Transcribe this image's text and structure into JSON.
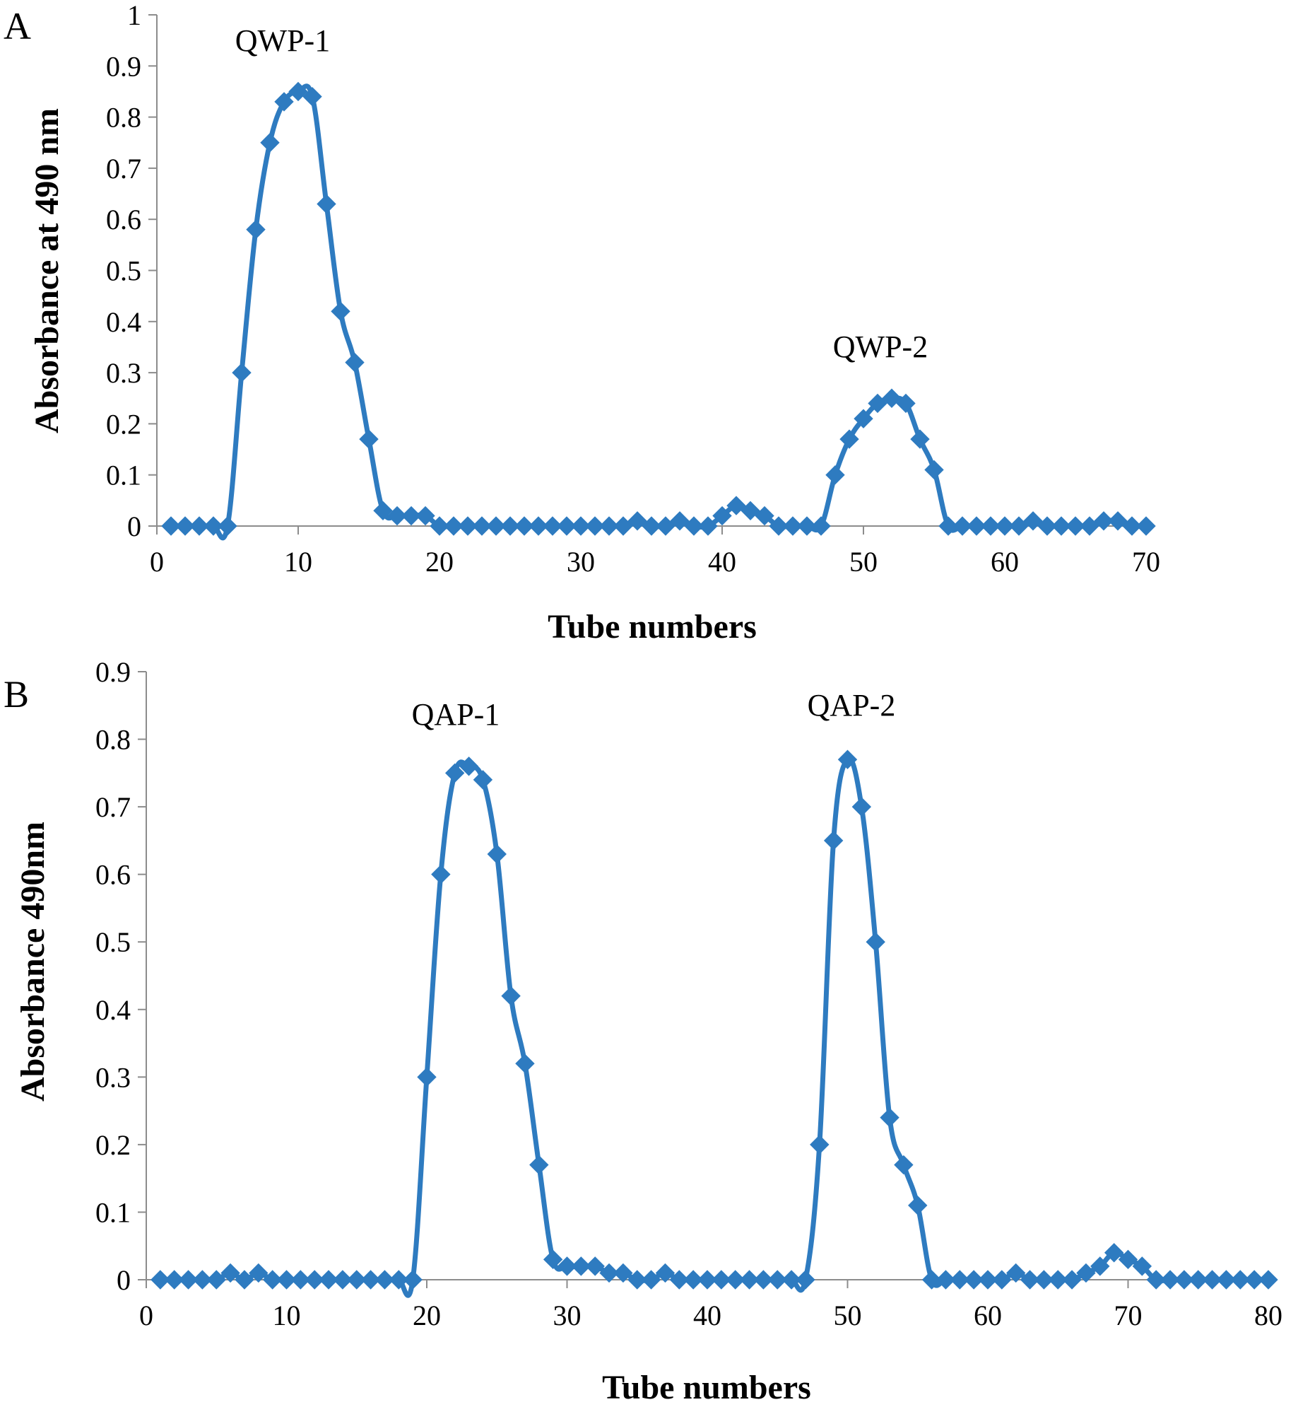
{
  "chart_data": [
    {
      "type": "line",
      "panel_label": "A",
      "xlabel": "Tube numbers",
      "ylabel": "Absorbance at 490 nm",
      "xlim": [
        0,
        70
      ],
      "ylim": [
        0,
        1
      ],
      "xticks": [
        0,
        10,
        20,
        30,
        40,
        50,
        60,
        70
      ],
      "xtick_labels": [
        "0",
        "10",
        "20",
        "30",
        "40",
        "50",
        "60",
        "70"
      ],
      "yticks": [
        0,
        0.1,
        0.2,
        0.3,
        0.4,
        0.5,
        0.6,
        0.7,
        0.8,
        0.9,
        1
      ],
      "ytick_labels": [
        "0",
        "0.1",
        "0.2",
        "0.3",
        "0.4",
        "0.5",
        "0.6",
        "0.7",
        "0.8",
        "0.9",
        "1"
      ],
      "grid": false,
      "annotations": [
        {
          "text": "QWP-1",
          "x": 9.5,
          "y": 0.96
        },
        {
          "text": "QWP-2",
          "x": 52,
          "y": 0.34
        }
      ],
      "series": [
        {
          "name": "Absorbance",
          "color": "#2E7BC0",
          "marker": "diamond",
          "x": [
            1,
            2,
            3,
            4,
            5,
            6,
            7,
            8,
            9,
            10,
            11,
            12,
            13,
            14,
            15,
            16,
            17,
            18,
            19,
            20,
            21,
            22,
            23,
            24,
            25,
            26,
            27,
            28,
            29,
            30,
            31,
            32,
            33,
            34,
            35,
            36,
            37,
            38,
            39,
            40,
            41,
            42,
            43,
            44,
            45,
            46,
            47,
            48,
            49,
            50,
            51,
            52,
            53,
            54,
            55,
            56,
            57,
            58,
            59,
            60,
            61,
            62,
            63,
            64,
            65,
            66,
            67,
            68,
            69,
            70
          ],
          "y": [
            0,
            0,
            0,
            0,
            0,
            0.3,
            0.58,
            0.75,
            0.83,
            0.85,
            0.84,
            0.63,
            0.42,
            0.32,
            0.17,
            0.03,
            0.02,
            0.02,
            0.02,
            0,
            0,
            0,
            0,
            0,
            0,
            0,
            0,
            0,
            0,
            0,
            0,
            0,
            0,
            0.01,
            0,
            0,
            0.01,
            0,
            0,
            0.02,
            0.04,
            0.03,
            0.02,
            0,
            0,
            0,
            0,
            0.1,
            0.17,
            0.21,
            0.24,
            0.25,
            0.24,
            0.17,
            0.11,
            0,
            0,
            0,
            0,
            0,
            0,
            0.01,
            0,
            0,
            0,
            0,
            0.01,
            0.01,
            0,
            0
          ]
        }
      ]
    },
    {
      "type": "line",
      "panel_label": "B",
      "xlabel": "Tube numbers",
      "ylabel": "Absorbance 490nm",
      "xlim": [
        0,
        80
      ],
      "ylim": [
        0,
        0.9
      ],
      "xticks": [
        0,
        10,
        20,
        30,
        40,
        50,
        60,
        70,
        80
      ],
      "xtick_labels": [
        "0",
        "10",
        "20",
        "30",
        "40",
        "50",
        "60",
        "70",
        "80"
      ],
      "yticks": [
        0,
        0.1,
        0.2,
        0.3,
        0.4,
        0.5,
        0.6,
        0.7,
        0.8,
        0.9
      ],
      "ytick_labels": [
        "0",
        "0.1",
        "0.2",
        "0.3",
        "0.4",
        "0.5",
        "0.6",
        "0.7",
        "0.8",
        "0.9"
      ],
      "grid": false,
      "annotations": [
        {
          "text": "QAP-1",
          "x": 22.5,
          "y": 0.835
        },
        {
          "text": "QAP-2",
          "x": 50,
          "y": 0.84
        }
      ],
      "series": [
        {
          "name": "Absorbance",
          "color": "#2E7BC0",
          "marker": "diamond",
          "x": [
            1,
            2,
            3,
            4,
            5,
            6,
            7,
            8,
            9,
            10,
            11,
            12,
            13,
            14,
            15,
            16,
            17,
            18,
            19,
            20,
            21,
            22,
            23,
            24,
            25,
            26,
            27,
            28,
            29,
            30,
            31,
            32,
            33,
            34,
            35,
            36,
            37,
            38,
            39,
            40,
            41,
            42,
            43,
            44,
            45,
            46,
            47,
            48,
            49,
            50,
            51,
            52,
            53,
            54,
            55,
            56,
            57,
            58,
            59,
            60,
            61,
            62,
            63,
            64,
            65,
            66,
            67,
            68,
            69,
            70,
            71,
            72,
            73,
            74,
            75,
            76,
            77,
            78,
            79,
            80
          ],
          "y": [
            0,
            0,
            0,
            0,
            0,
            0.01,
            0,
            0.01,
            0,
            0,
            0,
            0,
            0,
            0,
            0,
            0,
            0,
            0,
            0,
            0.3,
            0.6,
            0.75,
            0.76,
            0.74,
            0.63,
            0.42,
            0.32,
            0.17,
            0.03,
            0.02,
            0.02,
            0.02,
            0.01,
            0.01,
            0,
            0,
            0.01,
            0,
            0,
            0,
            0,
            0,
            0,
            0,
            0,
            0,
            0,
            0.2,
            0.65,
            0.77,
            0.7,
            0.5,
            0.24,
            0.17,
            0.11,
            0,
            0,
            0,
            0,
            0,
            0,
            0.01,
            0,
            0,
            0,
            0,
            0.01,
            0.02,
            0.04,
            0.03,
            0.02,
            0,
            0,
            0,
            0,
            0,
            0,
            0,
            0,
            0
          ]
        }
      ]
    }
  ]
}
